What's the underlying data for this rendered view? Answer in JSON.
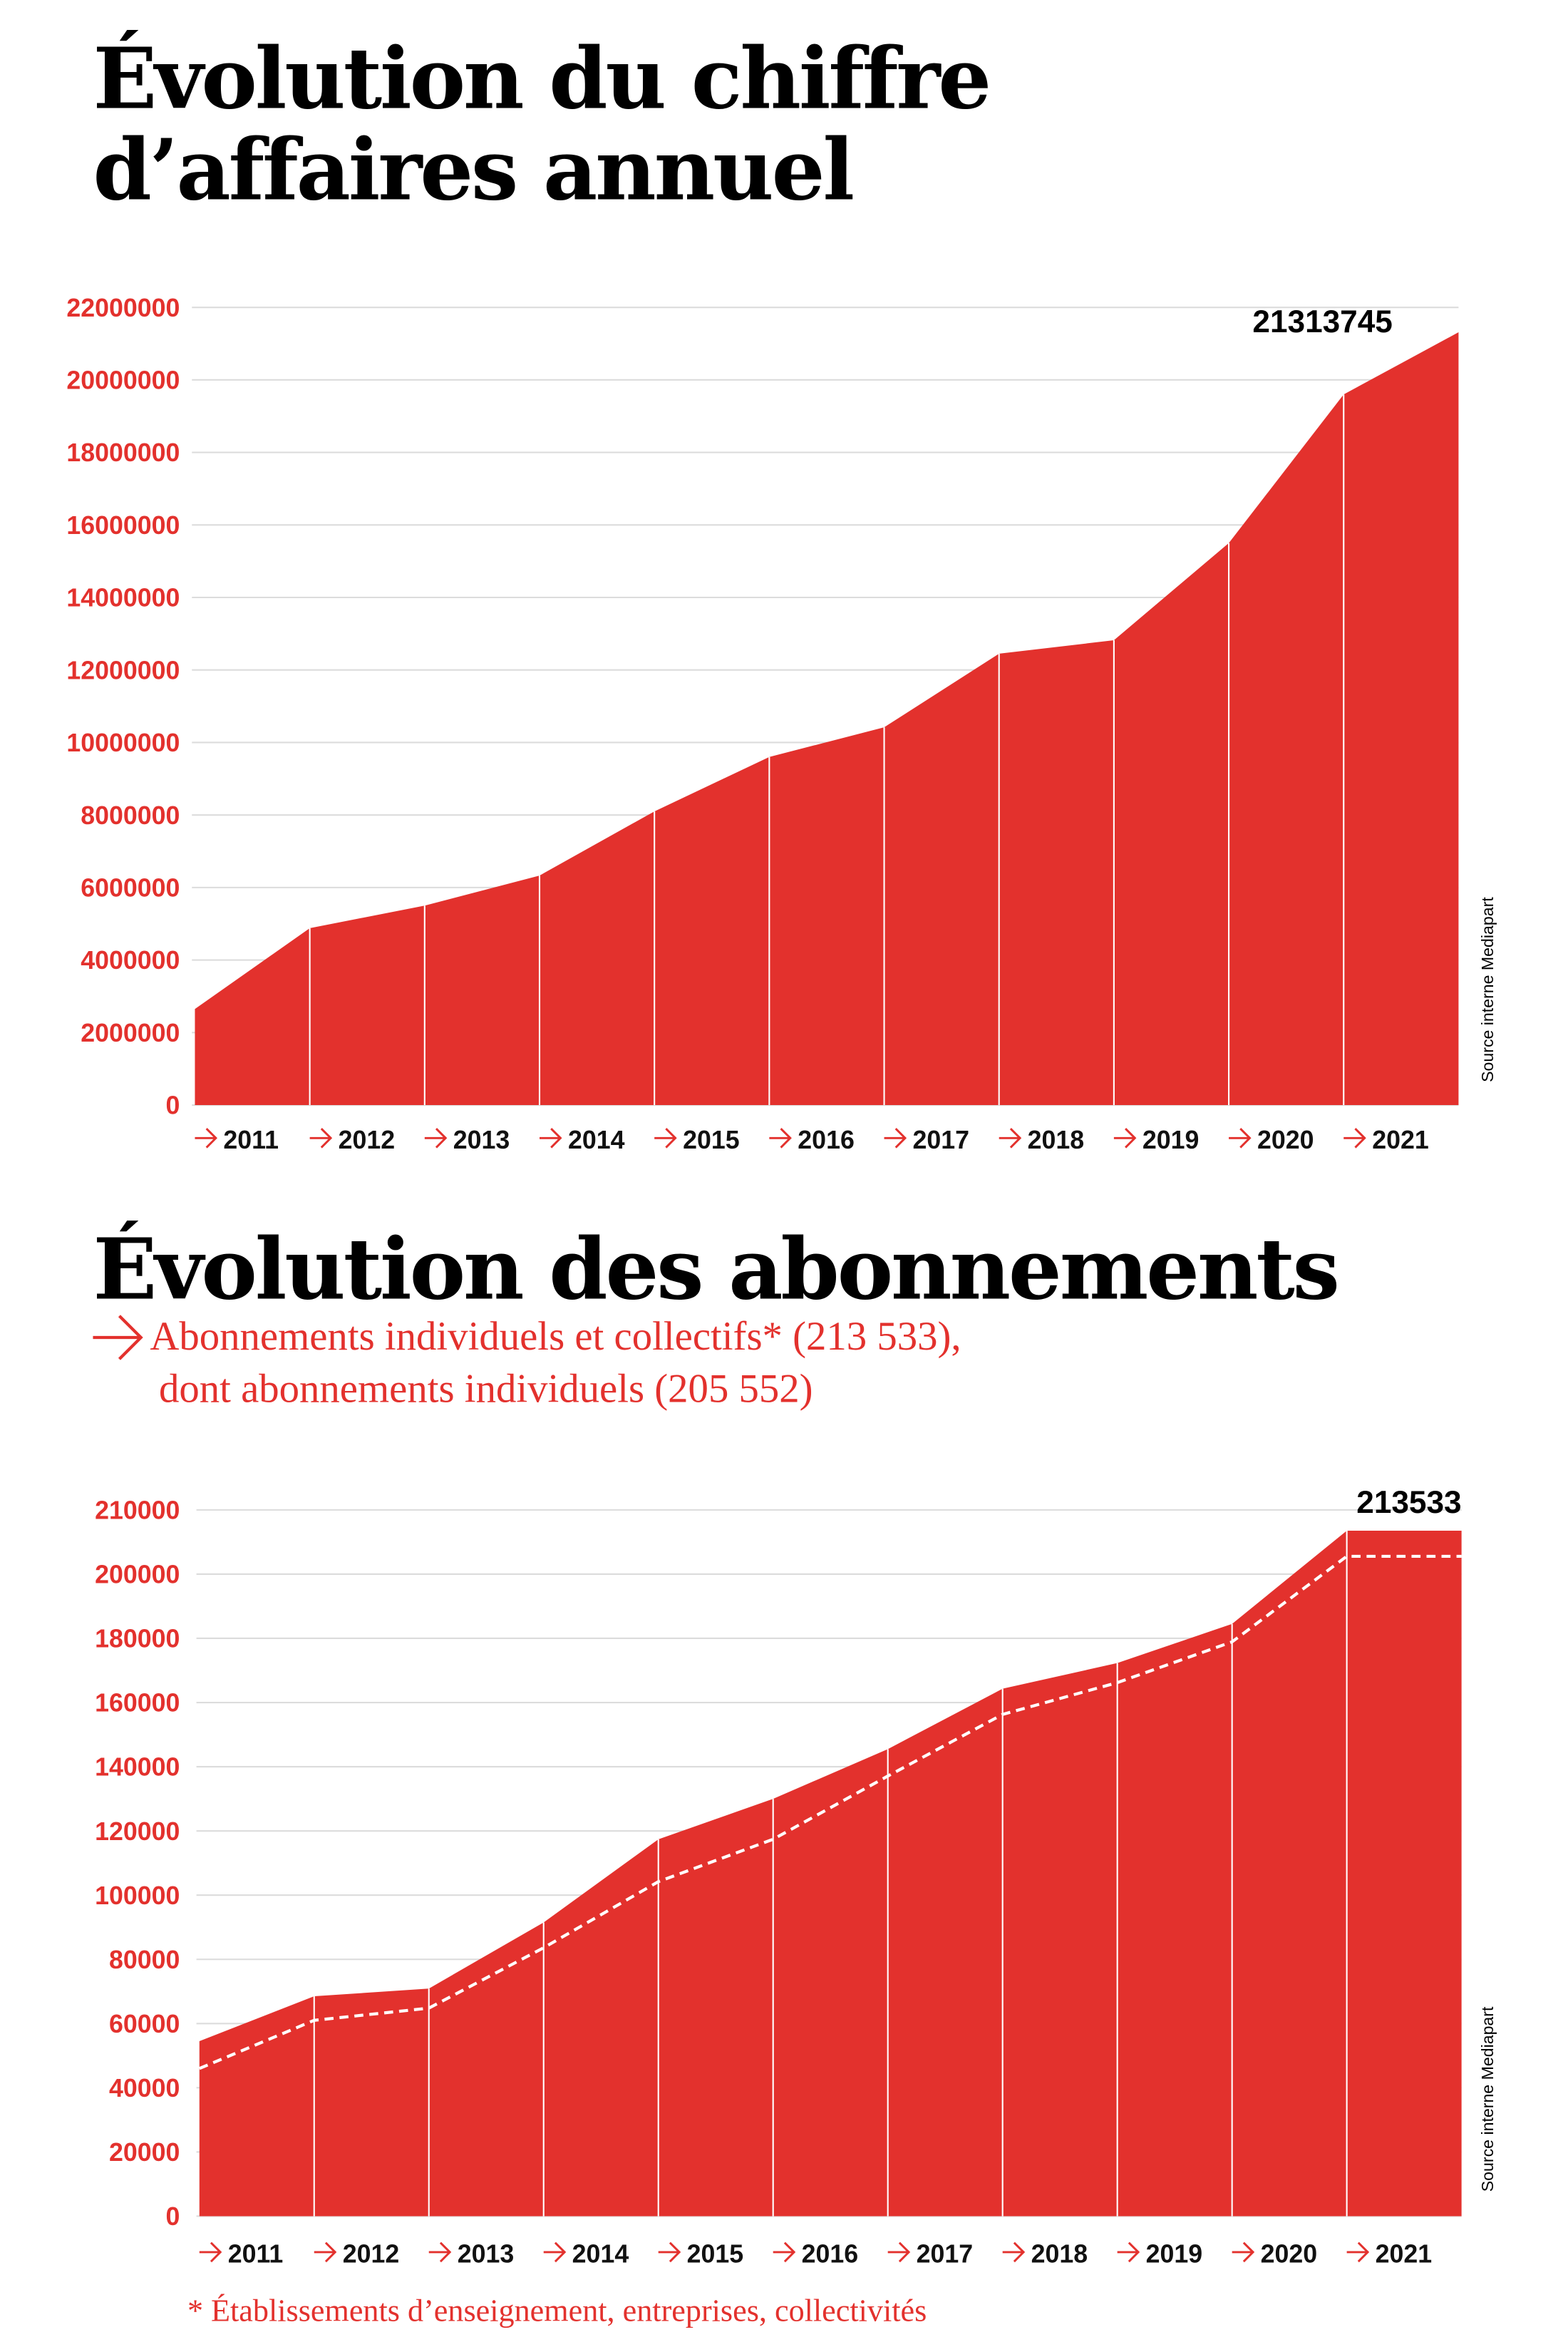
{
  "chart_data": [
    {
      "type": "area",
      "title": [
        "Évolution du chiffre",
        "d’affaires annuel"
      ],
      "categories": [
        "2011",
        "2012",
        "2013",
        "2014",
        "2015",
        "2016",
        "2017",
        "2018",
        "2019",
        "2020",
        "2021",
        null
      ],
      "series": [
        {
          "kind": "area",
          "color": "#e3312d",
          "values": [
            2650000,
            4880000,
            5500000,
            6330000,
            8100000,
            9600000,
            10420000,
            12450000,
            12820000,
            15500000,
            19600000,
            21313745
          ],
          "value_labels": [
            null,
            null,
            null,
            null,
            null,
            null,
            null,
            null,
            null,
            null,
            null,
            "21313745"
          ]
        }
      ],
      "ylim": [
        0,
        22000000
      ],
      "yticks": [
        0,
        2000000,
        4000000,
        6000000,
        8000000,
        10000000,
        12000000,
        14000000,
        16000000,
        18000000,
        20000000,
        22000000
      ],
      "grid": true,
      "source": "Source interne Mediapart"
    },
    {
      "type": "area",
      "title": [
        "Évolution des abonnements"
      ],
      "subtitle": [
        "Abonnements individuels et collectifs* (213 533),",
        "dont abonnements individuels (205 552)"
      ],
      "categories": [
        "2011",
        "2012",
        "2013",
        "2014",
        "2015",
        "2016",
        "2017",
        "2018",
        "2019",
        "2020",
        "2021",
        null
      ],
      "series": [
        {
          "kind": "area",
          "color": "#e3312d",
          "values": [
            54500,
            68500,
            70900,
            91500,
            117400,
            130000,
            145500,
            164300,
            172300,
            184500,
            213533,
            213533
          ],
          "value_labels": [
            null,
            null,
            null,
            null,
            null,
            null,
            null,
            null,
            null,
            null,
            null,
            "213533"
          ]
        },
        {
          "kind": "line",
          "line_style": "dashed",
          "color": "#ffffff",
          "values": [
            46000,
            61000,
            64800,
            83600,
            104200,
            117400,
            137100,
            156300,
            166200,
            178900,
            205552,
            205552
          ]
        }
      ],
      "ylim": [
        0,
        222000
      ],
      "yticks": [
        0,
        20000,
        40000,
        60000,
        80000,
        100000,
        120000,
        140000,
        160000,
        180000,
        200000,
        210000
      ],
      "grid": true,
      "source": "Source interne Mediapart",
      "footnote": "* Établissements d’enseignement, entreprises, collectivités"
    }
  ]
}
